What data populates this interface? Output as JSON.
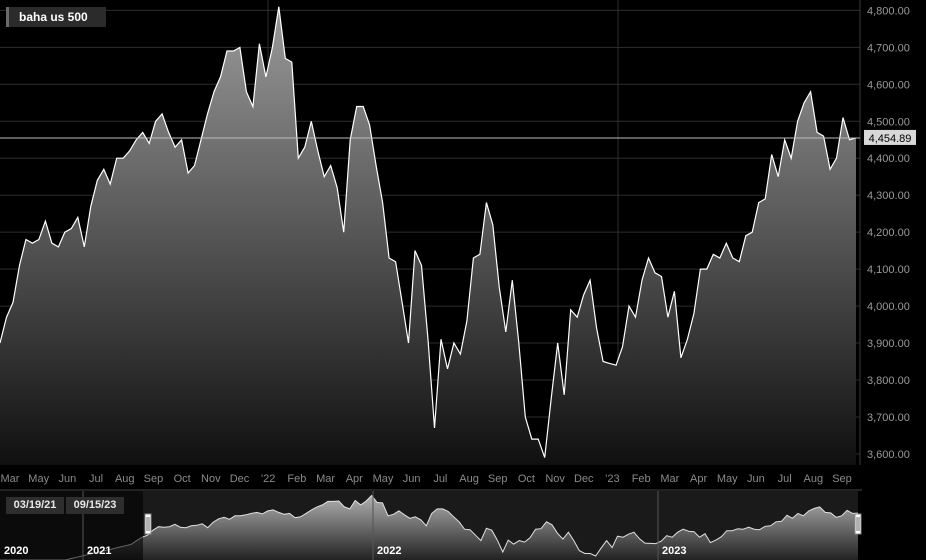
{
  "instrument": {
    "label": "baha us 500"
  },
  "navigator": {
    "start_date": "03/19/21",
    "end_date": "09/15/23",
    "year_labels": [
      "2020",
      "2021",
      "2022",
      "2023"
    ]
  },
  "colors": {
    "background": "#000000",
    "line": "#ffffff",
    "grid": "#2e2e2e",
    "tick_text": "#9a9a9a"
  },
  "chart_data": {
    "type": "area",
    "title": "baha us 500",
    "last_value_label": "4,454.89",
    "last_value": 4454.89,
    "ylim": [
      3570,
      4820
    ],
    "y_ticks": [
      3600,
      3700,
      3800,
      3900,
      4000,
      4100,
      4200,
      4300,
      4400,
      4500,
      4600,
      4700,
      4800
    ],
    "y_tick_labels": [
      "3,600.00",
      "3,700.00",
      "3,800.00",
      "3,900.00",
      "4,000.00",
      "4,100.00",
      "4,200.00",
      "4,300.00",
      "4,400.00",
      "4,500.00",
      "4,600.00",
      "4,700.00",
      "4,800.00"
    ],
    "x_tick_labels": [
      "Mar",
      "May",
      "Jun",
      "Jul",
      "Aug",
      "Sep",
      "Oct",
      "Nov",
      "Dec",
      "'22",
      "Feb",
      "Mar",
      "Apr",
      "May",
      "Jun",
      "Jul",
      "Aug",
      "Sep",
      "Oct",
      "Nov",
      "Dec",
      "'23",
      "Feb",
      "Mar",
      "Apr",
      "May",
      "Jun",
      "Jul",
      "Aug",
      "Sep"
    ],
    "grid": true,
    "series": [
      {
        "values": [
          3900,
          3970,
          4010,
          4110,
          4180,
          4170,
          4180,
          4230,
          4170,
          4160,
          4200,
          4210,
          4240,
          4160,
          4270,
          4340,
          4370,
          4330,
          4400,
          4400,
          4420,
          4450,
          4470,
          4440,
          4500,
          4520,
          4470,
          4430,
          4450,
          4360,
          4380,
          4450,
          4520,
          4580,
          4620,
          4690,
          4690,
          4700,
          4580,
          4540,
          4710,
          4620,
          4700,
          4810,
          4670,
          4660,
          4400,
          4430,
          4500,
          4420,
          4350,
          4380,
          4320,
          4200,
          4450,
          4540,
          4540,
          4490,
          4380,
          4280,
          4130,
          4120,
          4010,
          3900,
          4150,
          4110,
          3910,
          3670,
          3910,
          3830,
          3900,
          3870,
          3960,
          4130,
          4140,
          4280,
          4220,
          4050,
          3930,
          4070,
          3900,
          3700,
          3640,
          3640,
          3590,
          3750,
          3900,
          3760,
          3990,
          3970,
          4030,
          4070,
          3940,
          3850,
          3845,
          3840,
          3890,
          4000,
          3970,
          4070,
          4130,
          4090,
          4080,
          3970,
          4040,
          3860,
          3910,
          3980,
          4100,
          4100,
          4140,
          4130,
          4170,
          4130,
          4120,
          4190,
          4200,
          4280,
          4290,
          4410,
          4350,
          4450,
          4400,
          4500,
          4550,
          4580,
          4470,
          4460,
          4370,
          4400,
          4510,
          4450,
          4455
        ]
      }
    ]
  }
}
